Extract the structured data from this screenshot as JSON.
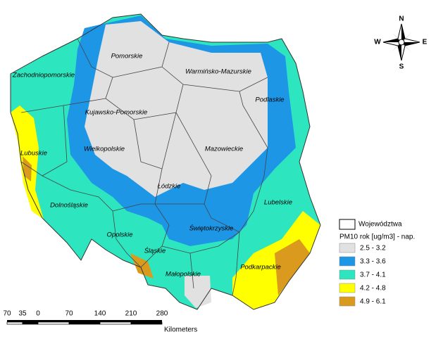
{
  "regions": [
    "Pomorskie",
    "Warmińsko-Mazurskie",
    "Zachodniopomorskie",
    "Podlaskie",
    "Kujawsko-Pomorskie",
    "Mazowieckie",
    "Wielkopolskie",
    "Lubuskie",
    "Łódzkie",
    "Lubelskie",
    "Dolnośląskie",
    "Opolskie",
    "Świętokrzyskie",
    "Śląskie",
    "Podkarpackie",
    "Małopolskie"
  ],
  "compass": {
    "n": "N",
    "s": "S",
    "e": "E",
    "w": "W"
  },
  "legend": {
    "boundary": "Województwa",
    "title": "PM10 rok [ug/m3] - nap.",
    "classes": [
      {
        "label": "2.5 - 3.2",
        "color": "#e1e1e1"
      },
      {
        "label": "3.3 - 3.6",
        "color": "#1e96e6"
      },
      {
        "label": "3.7 - 4.1",
        "color": "#2de6c0"
      },
      {
        "label": "4.2 - 4.8",
        "color": "#ffff00"
      },
      {
        "label": "4.9 - 6.1",
        "color": "#d99a1e"
      }
    ]
  },
  "scale_bar": {
    "ticks": [
      "70",
      "35",
      "0",
      "70",
      "140",
      "210",
      "280"
    ],
    "unit": "Kilometers"
  }
}
